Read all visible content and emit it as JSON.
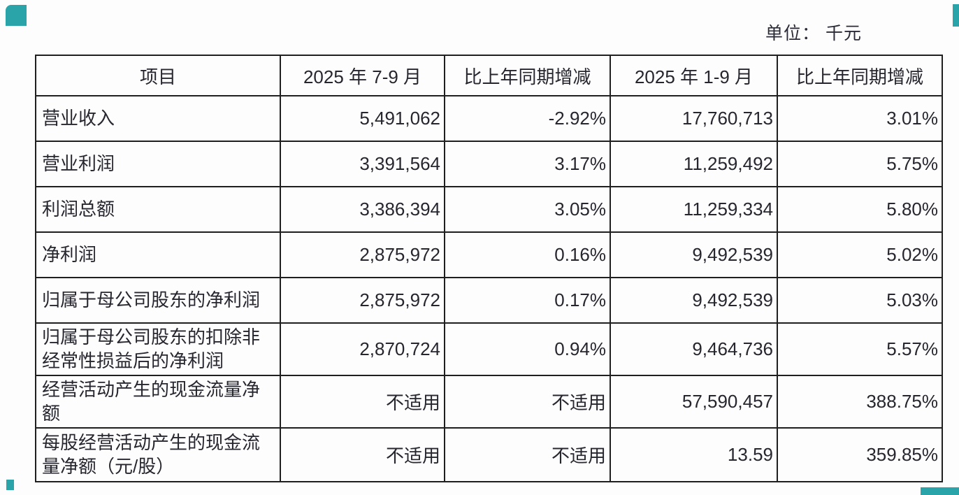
{
  "page": {
    "unit_label": "单位： 千元"
  },
  "table": {
    "columns": [
      "项目",
      "2025 年 7-9 月",
      "比上年同期增减",
      "2025 年 1-9 月",
      "比上年同期增减"
    ],
    "rows": [
      {
        "item": "营业收入",
        "q3": "5,491,062",
        "q3_change": "-2.92%",
        "ytd": "17,760,713",
        "ytd_change": "3.01%"
      },
      {
        "item": "营业利润",
        "q3": "3,391,564",
        "q3_change": "3.17%",
        "ytd": "11,259,492",
        "ytd_change": "5.75%"
      },
      {
        "item": "利润总额",
        "q3": "3,386,394",
        "q3_change": "3.05%",
        "ytd": "11,259,334",
        "ytd_change": "5.80%"
      },
      {
        "item": "净利润",
        "q3": "2,875,972",
        "q3_change": "0.16%",
        "ytd": "9,492,539",
        "ytd_change": "5.02%"
      },
      {
        "item": "归属于母公司股东的净利润",
        "q3": "2,875,972",
        "q3_change": "0.17%",
        "ytd": "9,492,539",
        "ytd_change": "5.03%"
      },
      {
        "item": "归属于母公司股东的扣除非经常性损益后的净利润",
        "q3": "2,870,724",
        "q3_change": "0.94%",
        "ytd": "9,464,736",
        "ytd_change": "5.57%"
      },
      {
        "item": "经营活动产生的现金流量净额",
        "q3": "不适用",
        "q3_change": "不适用",
        "ytd": "57,590,457",
        "ytd_change": "388.75%"
      },
      {
        "item": "每股经营活动产生的现金流量净额（元/股）",
        "q3": "不适用",
        "q3_change": "不适用",
        "ytd": "13.59",
        "ytd_change": "359.85%"
      }
    ]
  },
  "colors": {
    "accent_teal": "#2aa4a8",
    "text": "#26262e",
    "border": "#1f1f1f"
  }
}
